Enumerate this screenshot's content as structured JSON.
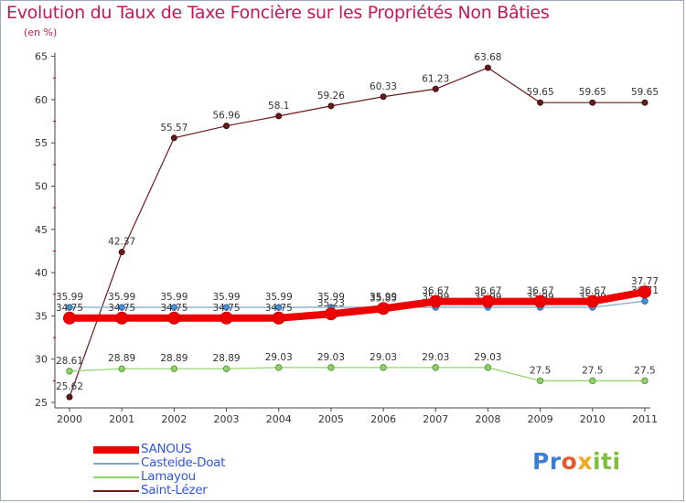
{
  "chart_data": {
    "type": "line",
    "title": "Evolution du Taux de Taxe Foncière sur les Propriétés Non Bâties",
    "ylabel": "(en %)",
    "xlabel": "",
    "ylim": [
      25,
      65
    ],
    "yticks": [
      25,
      30,
      35,
      40,
      45,
      50,
      55,
      60,
      65
    ],
    "grid": false,
    "categories": [
      "2000",
      "2001",
      "2002",
      "2003",
      "2004",
      "2005",
      "2006",
      "2007",
      "2008",
      "2009",
      "2010",
      "2011"
    ],
    "series": [
      {
        "name": "Saint-Lézer",
        "color": "#6b1a1a",
        "values": [
          25.62,
          42.37,
          55.57,
          56.96,
          58.1,
          59.26,
          60.33,
          61.23,
          63.68,
          59.65,
          59.65,
          59.65
        ],
        "labels": [
          "25.62",
          "42.37",
          "55.57",
          "56.96",
          "58.1",
          "59.26",
          "60.33",
          "61.23",
          "63.68",
          "59.65",
          "59.65",
          "59.65"
        ]
      },
      {
        "name": "Lamayou",
        "color": "#8fd36a",
        "values": [
          28.61,
          28.89,
          28.89,
          28.89,
          29.03,
          29.03,
          29.03,
          29.03,
          29.03,
          27.5,
          27.5,
          27.5
        ],
        "labels": [
          "28.61",
          "28.89",
          "28.89",
          "28.89",
          "29.03",
          "29.03",
          "29.03",
          "29.03",
          "29.03",
          "27.5",
          "27.5",
          "27.5"
        ]
      },
      {
        "name": "Casteide-Doat",
        "color": "#7aa6cf",
        "values": [
          35.99,
          35.99,
          35.99,
          35.99,
          35.99,
          35.99,
          35.99,
          35.99,
          35.99,
          35.99,
          35.99,
          36.71
        ],
        "labels": [
          "35.99",
          "35.99",
          "35.99",
          "35.99",
          "35.99",
          "35.99",
          "35.99",
          "35.99",
          "35.99",
          "35.99",
          "35.99",
          "36.71"
        ]
      },
      {
        "name": "SANOUS",
        "color": "#ee0000",
        "values": [
          34.75,
          34.75,
          34.75,
          34.75,
          34.75,
          35.23,
          35.85,
          36.67,
          36.67,
          36.67,
          36.67,
          37.77
        ],
        "labels": [
          "34.75",
          "34.75",
          "34.75",
          "34.75",
          "34.75",
          "35.23",
          "35.85",
          "36.67",
          "36.67",
          "36.67",
          "36.67",
          "37.77"
        ]
      }
    ],
    "legend_order": [
      "SANOUS",
      "Casteide-Doat",
      "Lamayou",
      "Saint-Lézer"
    ],
    "legend_position": "bottom-left"
  },
  "logo": {
    "parts": [
      "Pr",
      "o",
      "x",
      "iti"
    ]
  }
}
